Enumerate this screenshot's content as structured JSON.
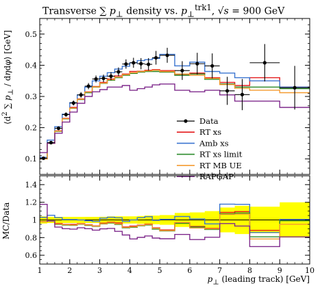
{
  "figure": {
    "title": "Transverse ∑ p⊥ density vs. p⊥trk1, √s = 900 GeV",
    "xlabel": "p⊥ (leading track) [GeV]",
    "ylabel_main": "⟨d² ∑ p⊥ / dηdφ⟩ [GeV]",
    "ylabel_ratio": "MC/Data"
  },
  "chart_data": [
    {
      "type": "line",
      "panel": "main",
      "title": "Transverse ∑ p⊥ density vs. p⊥trk1, √s = 900 GeV",
      "xlabel": "",
      "ylabel": "⟨d² ∑ p⊥ / dηdφ⟩ [GeV]",
      "xlim": [
        1,
        10
      ],
      "ylim": [
        0.05,
        0.55
      ],
      "x_edges": [
        1.0,
        1.25,
        1.5,
        1.75,
        2.0,
        2.25,
        2.5,
        2.75,
        3.0,
        3.25,
        3.5,
        3.75,
        4.0,
        4.25,
        4.5,
        4.75,
        5.0,
        5.5,
        6.0,
        6.5,
        7.0,
        7.5,
        8.0,
        9.0,
        10.0
      ],
      "yticks": [
        0.1,
        0.2,
        0.3,
        0.4,
        0.5
      ],
      "xticks": [
        1,
        2,
        3,
        4,
        5,
        6,
        7,
        8,
        9,
        10
      ],
      "data": {
        "name": "Data",
        "x": [
          1.125,
          1.375,
          1.625,
          1.875,
          2.125,
          2.375,
          2.625,
          2.875,
          3.125,
          3.375,
          3.625,
          3.875,
          4.125,
          4.375,
          4.625,
          4.875,
          5.25,
          5.75,
          6.25,
          6.75,
          7.25,
          7.75,
          8.5,
          9.5
        ],
        "y": [
          0.102,
          0.152,
          0.198,
          0.242,
          0.279,
          0.305,
          0.333,
          0.356,
          0.358,
          0.365,
          0.379,
          0.404,
          0.408,
          0.405,
          0.403,
          0.424,
          0.432,
          0.383,
          0.405,
          0.398,
          0.318,
          0.306,
          0.408,
          0.328
        ],
        "yerr": [
          0.004,
          0.005,
          0.006,
          0.007,
          0.008,
          0.009,
          0.01,
          0.011,
          0.012,
          0.013,
          0.014,
          0.015,
          0.016,
          0.018,
          0.02,
          0.022,
          0.024,
          0.03,
          0.035,
          0.04,
          0.045,
          0.05,
          0.06,
          0.07
        ]
      },
      "series": [
        {
          "name": "RT xs",
          "color": "#e41a1c",
          "values": [
            0.1,
            0.15,
            0.19,
            0.23,
            0.265,
            0.292,
            0.315,
            0.332,
            0.345,
            0.356,
            0.366,
            0.372,
            0.38,
            0.381,
            0.384,
            0.386,
            0.383,
            0.37,
            0.375,
            0.36,
            0.345,
            0.335,
            0.36,
            0.33
          ]
        },
        {
          "name": "Amb xs",
          "color": "#3a74d0",
          "values": [
            0.105,
            0.16,
            0.203,
            0.243,
            0.28,
            0.305,
            0.33,
            0.35,
            0.365,
            0.376,
            0.388,
            0.397,
            0.408,
            0.415,
            0.418,
            0.422,
            0.435,
            0.398,
            0.41,
            0.38,
            0.375,
            0.36,
            0.35,
            0.33
          ]
        },
        {
          "name": "RT xs limit",
          "color": "#2a8a2a",
          "values": [
            0.1,
            0.15,
            0.188,
            0.228,
            0.262,
            0.29,
            0.312,
            0.33,
            0.342,
            0.352,
            0.36,
            0.368,
            0.374,
            0.378,
            0.38,
            0.38,
            0.378,
            0.368,
            0.372,
            0.355,
            0.34,
            0.33,
            0.33,
            0.325
          ]
        },
        {
          "name": "RT MB UE",
          "color": "#f59a30",
          "values": [
            0.1,
            0.15,
            0.189,
            0.229,
            0.263,
            0.291,
            0.314,
            0.331,
            0.343,
            0.354,
            0.362,
            0.37,
            0.376,
            0.38,
            0.382,
            0.384,
            0.38,
            0.372,
            0.368,
            0.358,
            0.338,
            0.326,
            0.32,
            0.312
          ]
        },
        {
          "name": "RAPGAP",
          "color": "#7f2a8c",
          "values": [
            0.12,
            0.15,
            0.182,
            0.218,
            0.25,
            0.278,
            0.3,
            0.315,
            0.322,
            0.33,
            0.33,
            0.335,
            0.32,
            0.325,
            0.33,
            0.337,
            0.34,
            0.32,
            0.315,
            0.32,
            0.305,
            0.285,
            0.285,
            0.265
          ]
        }
      ],
      "legend": [
        "Data",
        "RT xs",
        "Amb xs",
        "RT xs limit",
        "RT MB UE",
        "RAPGAP"
      ],
      "legend_position": "right-middle"
    },
    {
      "type": "line",
      "panel": "ratio",
      "xlabel": "p⊥ (leading track) [GeV]",
      "ylabel": "MC/Data",
      "xlim": [
        1,
        10
      ],
      "ylim": [
        0.5,
        1.5
      ],
      "yticks": [
        0.6,
        0.8,
        1.0,
        1.2,
        1.4
      ],
      "ytick_labels": [
        "0.6",
        "0.8",
        "1",
        "1.2",
        "1.4"
      ],
      "xticks": [
        1,
        2,
        3,
        4,
        5,
        6,
        7,
        8,
        9,
        10
      ],
      "band_color": "#ffff00",
      "band_halfwidth": [
        0.04,
        0.035,
        0.035,
        0.035,
        0.035,
        0.035,
        0.035,
        0.035,
        0.035,
        0.04,
        0.04,
        0.04,
        0.04,
        0.045,
        0.05,
        0.05,
        0.055,
        0.08,
        0.085,
        0.1,
        0.14,
        0.16,
        0.15,
        0.2
      ]
    }
  ]
}
